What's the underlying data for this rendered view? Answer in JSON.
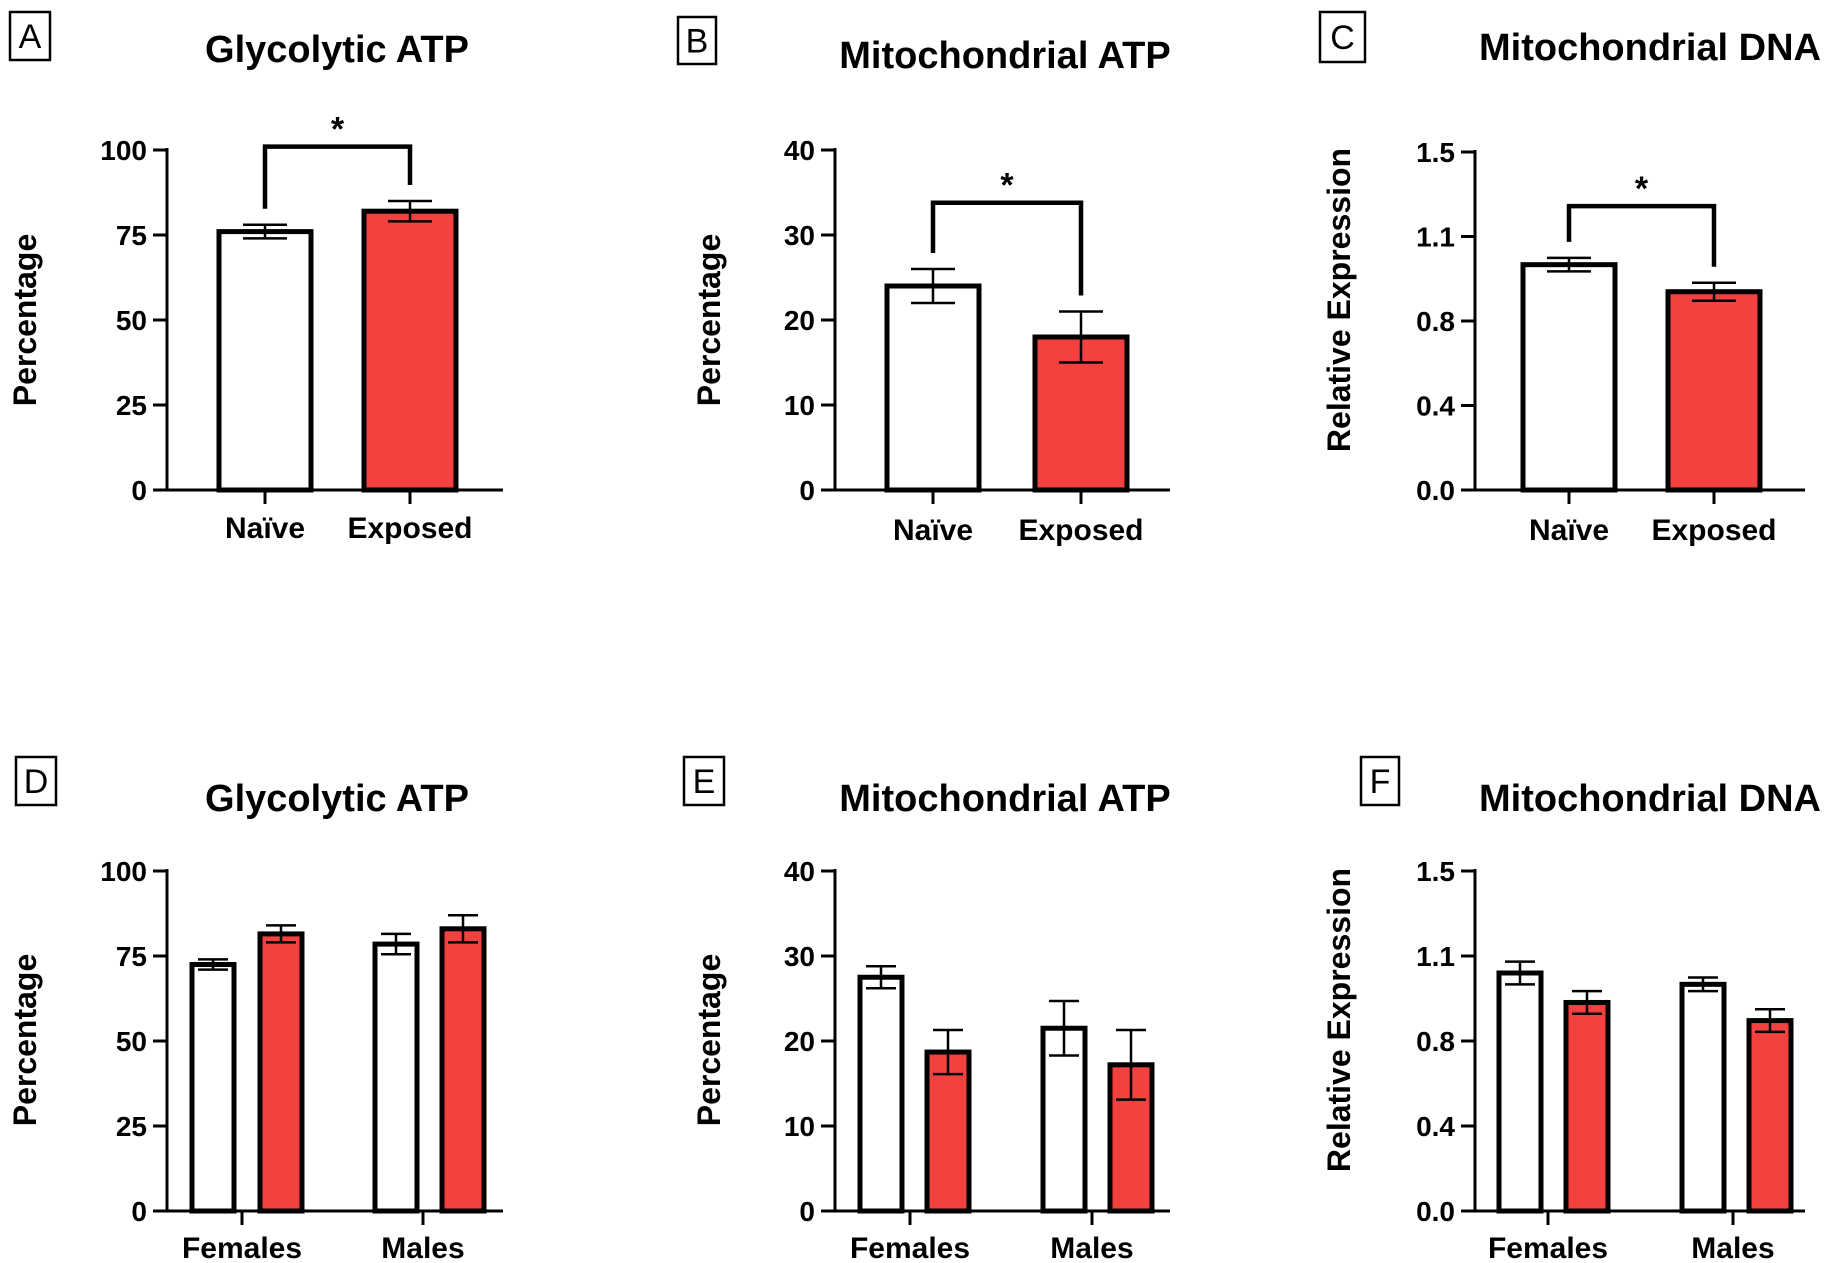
{
  "colors": {
    "naive": "#ffffff",
    "exposed": "#f54040",
    "stroke": "#000000"
  },
  "chart_data": [
    {
      "panel": "A",
      "type": "bar",
      "title": "Glycolytic ATP",
      "ylabel": "Percentage",
      "ylim": [
        0,
        100
      ],
      "yticks": [
        "0",
        "25",
        "50",
        "75",
        "100"
      ],
      "ytick_values": [
        0,
        25,
        50,
        75,
        100
      ],
      "groups": [
        {
          "label": "Naïve",
          "bars": [
            {
              "series": "Naïve",
              "value": 76,
              "err": 2
            }
          ]
        },
        {
          "label": "Exposed",
          "bars": [
            {
              "series": "Exposed",
              "value": 82,
              "err": 3
            }
          ]
        }
      ],
      "significance": {
        "text": "*",
        "y": 101
      }
    },
    {
      "panel": "B",
      "type": "bar",
      "title": "Mitochondrial ATP",
      "ylabel": "Percentage",
      "ylim": [
        0,
        40
      ],
      "yticks": [
        "0",
        "10",
        "20",
        "30",
        "40"
      ],
      "ytick_values": [
        0,
        10,
        20,
        30,
        40
      ],
      "groups": [
        {
          "label": "Naïve",
          "bars": [
            {
              "series": "Naïve",
              "value": 24,
              "err": 2
            }
          ]
        },
        {
          "label": "Exposed",
          "bars": [
            {
              "series": "Exposed",
              "value": 18,
              "err": 3
            }
          ]
        }
      ],
      "significance": {
        "text": "*",
        "y": 33.8
      }
    },
    {
      "panel": "C",
      "type": "bar",
      "title": "Mitochondrial DNA",
      "ylabel": "Relative Expression",
      "ylim": [
        0,
        1.5
      ],
      "yticks": [
        "0.0",
        "0.4",
        "0.8",
        "1.1",
        "1.5"
      ],
      "ytick_values": [
        0,
        0.375,
        0.75,
        1.125,
        1.5
      ],
      "groups": [
        {
          "label": "Naïve",
          "bars": [
            {
              "series": "Naïve",
              "value": 1.0,
              "err": 0.03
            }
          ]
        },
        {
          "label": "Exposed",
          "bars": [
            {
              "series": "Exposed",
              "value": 0.88,
              "err": 0.04
            }
          ]
        }
      ],
      "significance": {
        "text": "*",
        "y": 1.26
      }
    },
    {
      "panel": "D",
      "type": "bar",
      "title": "Glycolytic ATP",
      "ylabel": "Percentage",
      "ylim": [
        0,
        100
      ],
      "yticks": [
        "0",
        "25",
        "50",
        "75",
        "100"
      ],
      "ytick_values": [
        0,
        25,
        50,
        75,
        100
      ],
      "groups": [
        {
          "label": "Females",
          "bars": [
            {
              "series": "Naïve",
              "value": 72.5,
              "err": 1.5
            },
            {
              "series": "Exposed",
              "value": 81.5,
              "err": 2.5
            }
          ]
        },
        {
          "label": "Males",
          "bars": [
            {
              "series": "Naïve",
              "value": 78.5,
              "err": 3
            },
            {
              "series": "Exposed",
              "value": 83,
              "err": 4
            }
          ]
        }
      ]
    },
    {
      "panel": "E",
      "type": "bar",
      "title": "Mitochondrial ATP",
      "ylabel": "Percentage",
      "ylim": [
        0,
        40
      ],
      "yticks": [
        "0",
        "10",
        "20",
        "30",
        "40"
      ],
      "ytick_values": [
        0,
        10,
        20,
        30,
        40
      ],
      "groups": [
        {
          "label": "Females",
          "bars": [
            {
              "series": "Naïve",
              "value": 27.5,
              "err": 1.3
            },
            {
              "series": "Exposed",
              "value": 18.7,
              "err": 2.6
            }
          ]
        },
        {
          "label": "Males",
          "bars": [
            {
              "series": "Naïve",
              "value": 21.5,
              "err": 3.2
            },
            {
              "series": "Exposed",
              "value": 17.2,
              "err": 4.1
            }
          ]
        }
      ]
    },
    {
      "panel": "F",
      "type": "bar",
      "title": "Mitochondrial DNA",
      "ylabel": "Relative Expression",
      "ylim": [
        0,
        1.5
      ],
      "yticks": [
        "0.0",
        "0.4",
        "0.8",
        "1.1",
        "1.5"
      ],
      "ytick_values": [
        0,
        0.375,
        0.75,
        1.125,
        1.5
      ],
      "groups": [
        {
          "label": "Females",
          "bars": [
            {
              "series": "Naïve",
              "value": 1.05,
              "err": 0.05
            },
            {
              "series": "Exposed",
              "value": 0.92,
              "err": 0.05
            }
          ]
        },
        {
          "label": "Males",
          "bars": [
            {
              "series": "Naïve",
              "value": 1.0,
              "err": 0.03
            },
            {
              "series": "Exposed",
              "value": 0.84,
              "err": 0.05
            }
          ]
        }
      ]
    }
  ]
}
